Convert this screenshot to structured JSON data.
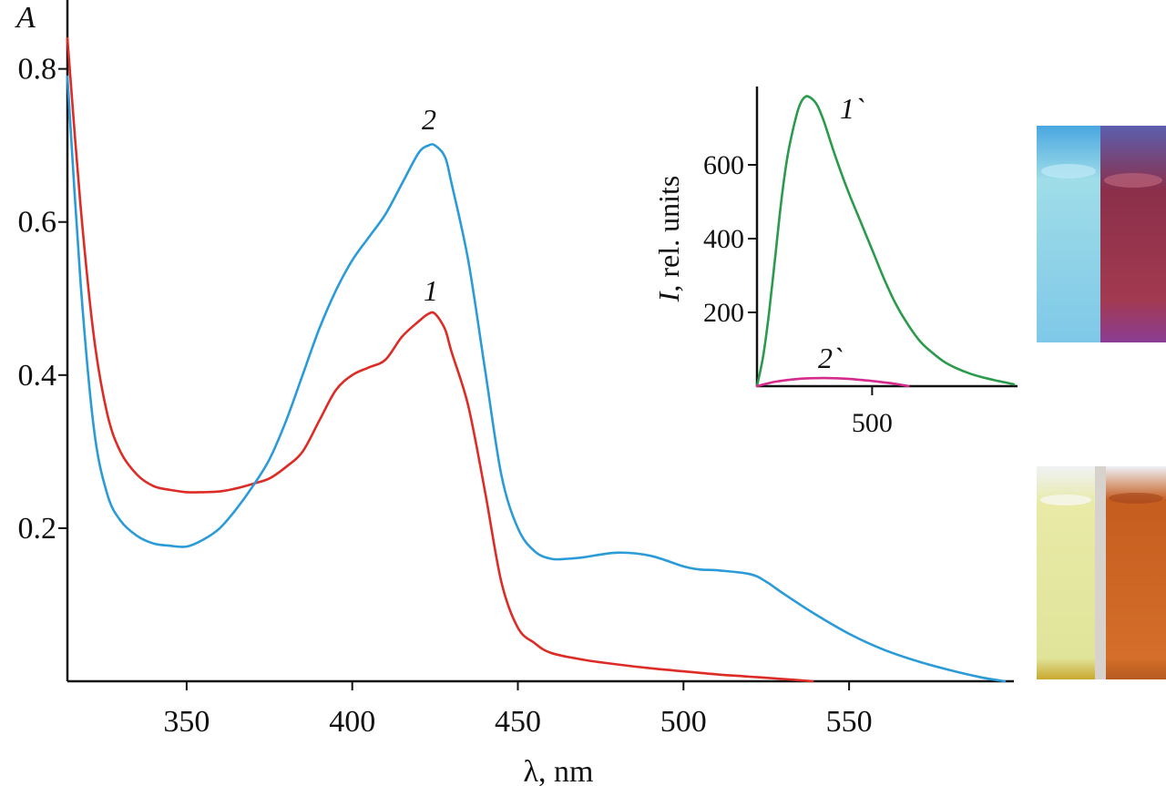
{
  "chart_data": [
    {
      "type": "line",
      "xlabel": "λ, nm",
      "ylabel": "A",
      "xlim": [
        314,
        597
      ],
      "ylim": [
        0,
        0.89
      ],
      "x_ticks": [
        350,
        400,
        450,
        500,
        550
      ],
      "y_ticks": [
        0.2,
        0.4,
        0.6,
        0.8
      ],
      "x_tick_labels": [
        "350",
        "400",
        "450",
        "500",
        "550"
      ],
      "y_tick_labels": [
        "0.2",
        "0.4",
        "0.6",
        "0.8"
      ],
      "series": [
        {
          "name": "1",
          "color": "#dd2b25",
          "x": [
            314,
            318,
            322,
            326,
            330,
            335,
            340,
            345,
            350,
            355,
            360,
            365,
            370,
            375,
            380,
            385,
            390,
            395,
            400,
            405,
            410,
            415,
            420,
            423,
            425,
            428,
            430,
            435,
            440,
            445,
            450,
            455,
            460,
            470,
            480,
            490,
            500,
            510,
            520,
            530,
            539
          ],
          "y": [
            0.84,
            0.62,
            0.45,
            0.35,
            0.3,
            0.27,
            0.255,
            0.25,
            0.247,
            0.247,
            0.248,
            0.252,
            0.258,
            0.265,
            0.28,
            0.3,
            0.34,
            0.38,
            0.4,
            0.41,
            0.42,
            0.45,
            0.47,
            0.48,
            0.48,
            0.46,
            0.43,
            0.36,
            0.25,
            0.13,
            0.07,
            0.05,
            0.037,
            0.028,
            0.022,
            0.017,
            0.013,
            0.009,
            0.006,
            0.003,
            0.0
          ]
        },
        {
          "name": "2",
          "color": "#2a9bd8",
          "x": [
            314,
            318,
            322,
            326,
            330,
            335,
            340,
            345,
            350,
            355,
            360,
            365,
            370,
            375,
            380,
            385,
            390,
            395,
            400,
            405,
            410,
            415,
            420,
            423,
            425,
            428,
            430,
            435,
            440,
            445,
            450,
            455,
            460,
            465,
            470,
            480,
            490,
            500,
            505,
            510,
            520,
            525,
            530,
            540,
            550,
            560,
            570,
            580,
            590,
            597
          ],
          "y": [
            0.79,
            0.52,
            0.33,
            0.245,
            0.21,
            0.19,
            0.18,
            0.177,
            0.176,
            0.185,
            0.2,
            0.225,
            0.255,
            0.29,
            0.34,
            0.4,
            0.46,
            0.51,
            0.55,
            0.58,
            0.61,
            0.65,
            0.69,
            0.7,
            0.7,
            0.685,
            0.65,
            0.55,
            0.41,
            0.27,
            0.2,
            0.17,
            0.16,
            0.16,
            0.162,
            0.168,
            0.164,
            0.15,
            0.146,
            0.145,
            0.14,
            0.13,
            0.115,
            0.087,
            0.062,
            0.042,
            0.027,
            0.015,
            0.005,
            0.0
          ]
        }
      ],
      "annotations": [
        "1",
        "2"
      ]
    },
    {
      "type": "line",
      "xlabel": "",
      "ylabel": "I, rel. units",
      "xlim": [
        405,
        620
      ],
      "ylim": [
        0,
        800
      ],
      "x_ticks": [
        500
      ],
      "y_ticks": [
        200,
        400,
        600
      ],
      "x_tick_labels": [
        "500"
      ],
      "y_tick_labels": [
        "200",
        "400",
        "600"
      ],
      "series": [
        {
          "name": "1`",
          "color": "#2a9a4b",
          "x": [
            405,
            410,
            415,
            420,
            425,
            430,
            435,
            440,
            445,
            450,
            455,
            460,
            465,
            470,
            480,
            490,
            500,
            510,
            520,
            530,
            540,
            550,
            560,
            570,
            580,
            590,
            600,
            610,
            617
          ],
          "y": [
            0,
            80,
            200,
            350,
            500,
            620,
            700,
            760,
            785,
            780,
            760,
            720,
            670,
            620,
            530,
            450,
            370,
            290,
            220,
            165,
            120,
            90,
            65,
            48,
            35,
            25,
            17,
            10,
            5
          ]
        },
        {
          "name": "2`",
          "color": "#d62b8d",
          "x": [
            405,
            420,
            440,
            460,
            480,
            500,
            520,
            530
          ],
          "y": [
            0,
            12,
            20,
            22,
            20,
            14,
            6,
            0
          ]
        }
      ],
      "annotations": [
        "1`",
        "2`"
      ]
    }
  ],
  "photos": {
    "top": {
      "left_color": "#7fd0ea",
      "right_color": "#a2384f"
    },
    "bottom": {
      "left_color": "#e4e7a8",
      "right_color": "#d66d2a"
    }
  }
}
